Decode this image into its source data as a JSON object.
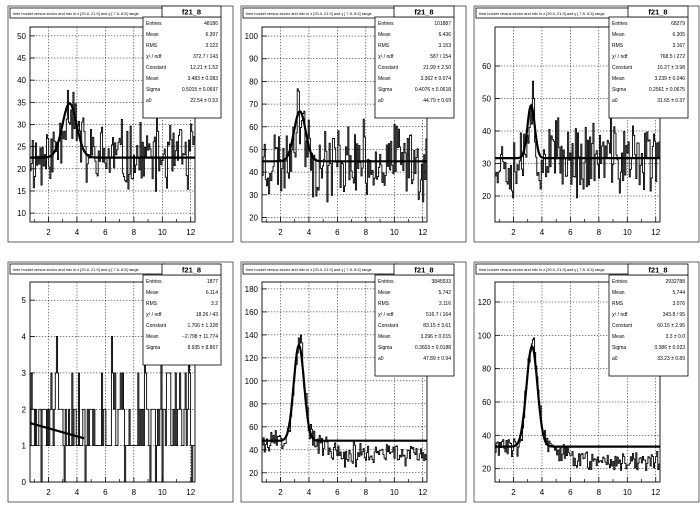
{
  "chart_data": [
    {
      "type": "line",
      "panel_label": "time bucket versus sector and ndc in z [20.0, 21.0] and y [ 7.5, 8.5] range",
      "histogram_name": "f21_8",
      "xlim": [
        0.7,
        12.3
      ],
      "ylim": [
        8,
        52
      ],
      "xticks": [
        2,
        4,
        6,
        8,
        10,
        12
      ],
      "yticks": [
        10,
        15,
        20,
        25,
        30,
        35,
        40,
        45,
        50
      ],
      "grid": true,
      "stats": [
        {
          "label": "Entries",
          "value": "48186"
        },
        {
          "label": "Mean",
          "value": "6.397"
        },
        {
          "label": "RMS",
          "value": "3.122"
        },
        {
          "label": "χ² / ndf",
          "value": "372.7 / 143"
        },
        {
          "label": "Constant",
          "value": "12.21 ± 1.52"
        },
        {
          "label": "Mean",
          "value": "3.483 ± 0.083"
        },
        {
          "label": "Sigma",
          "value": "0.5015 ± 0.0697"
        },
        {
          "label": "a0",
          "value": "22.54 ± 0.53"
        }
      ],
      "fit": {
        "constant": 12.21,
        "mean": 3.483,
        "sigma": 0.5015,
        "a0": 22.54
      },
      "noise": 7,
      "seed": 11
    },
    {
      "type": "line",
      "panel_label": "time bucket versus sector and ndc in z [20.0, 21.0] and y [ 7.5, 8.5] range",
      "histogram_name": "f21_8",
      "xlim": [
        0.7,
        12.3
      ],
      "ylim": [
        18,
        104
      ],
      "xticks": [
        2,
        4,
        6,
        8,
        10,
        12
      ],
      "yticks": [
        20,
        30,
        40,
        50,
        60,
        70,
        80,
        90,
        100
      ],
      "grid": true,
      "stats": [
        {
          "label": "Entries",
          "value": "101887"
        },
        {
          "label": "Mean",
          "value": "6.436"
        },
        {
          "label": "RMS",
          "value": "3.153"
        },
        {
          "label": "χ² / ndf",
          "value": "587 / 154"
        },
        {
          "label": "Constant",
          "value": "21.99 ± 2.50"
        },
        {
          "label": "Mean",
          "value": "3.362 ± 0.074"
        },
        {
          "label": "Sigma",
          "value": "0.4076 ± 0.0618"
        },
        {
          "label": "a0",
          "value": "44.79 ± 0.69"
        }
      ],
      "fit": {
        "constant": 21.99,
        "mean": 3.362,
        "sigma": 0.4076,
        "a0": 44.79
      },
      "noise": 14,
      "seed": 23
    },
    {
      "type": "line",
      "panel_label": "time bucket versus sector and ndc in z [20.0, 21.0] and y [ 7.5, 8.5] range",
      "histogram_name": "f21_8",
      "xlim": [
        0.7,
        12.3
      ],
      "ylim": [
        12,
        72
      ],
      "xticks": [
        2,
        4,
        6,
        8,
        10,
        12
      ],
      "yticks": [
        20,
        30,
        40,
        50,
        60
      ],
      "grid": true,
      "stats": [
        {
          "label": "Entries",
          "value": "68279"
        },
        {
          "label": "Mean",
          "value": "6.305"
        },
        {
          "label": "RMS",
          "value": "3.167"
        },
        {
          "label": "χ² / ndf",
          "value": "768.5 / 272"
        },
        {
          "label": "Constant",
          "value": "16.27 ± 3.98"
        },
        {
          "label": "Mean",
          "value": "3.239 ± 0.046"
        },
        {
          "label": "Sigma",
          "value": "0.2561 ± 0.0675"
        },
        {
          "label": "a0",
          "value": "31.65 ± 0.37"
        }
      ],
      "fit": {
        "constant": 16.27,
        "mean": 3.239,
        "sigma": 0.2561,
        "a0": 31.65
      },
      "noise": 10,
      "seed": 37
    },
    {
      "type": "line",
      "panel_label": "time bucket versus sector and ndc in z [20.0, 21.0] and y [ 7.5, 8.5] range",
      "histogram_name": "f21_8",
      "xlim": [
        0.7,
        12.3
      ],
      "ylim": [
        0,
        5.5
      ],
      "xticks": [
        2,
        4,
        6,
        8,
        10,
        12
      ],
      "yticks": [
        0,
        1,
        2,
        3,
        4,
        5
      ],
      "grid": true,
      "stats": [
        {
          "label": "Entries",
          "value": "1877"
        },
        {
          "label": "Mean",
          "value": "6.114"
        },
        {
          "label": "RMS",
          "value": "3.2"
        },
        {
          "label": "χ² / ndf",
          "value": "18.26 / 43"
        },
        {
          "label": "Constant",
          "value": "1.706 ± 1.328"
        },
        {
          "label": "Mean",
          "value": "−2.798 ± 11.774"
        },
        {
          "label": "Sigma",
          "value": "8.935 ± 8.867"
        }
      ],
      "fit_line": {
        "x": [
          0.7,
          4.5
        ],
        "y": [
          1.62,
          1.2
        ]
      },
      "discrete": true,
      "seed": 51
    },
    {
      "type": "line",
      "panel_label": "time bucket versus sector and ndc in z [20.0, 21.0] and y [ 7.5, 8.5] range",
      "histogram_name": "f21_8",
      "xlim": [
        0.7,
        12.3
      ],
      "ylim": [
        12,
        186
      ],
      "xticks": [
        2,
        4,
        6,
        8,
        10,
        12
      ],
      "yticks": [
        20,
        40,
        60,
        80,
        100,
        120,
        140,
        160,
        180
      ],
      "grid": true,
      "stats": [
        {
          "label": "Entries",
          "value": "3845533"
        },
        {
          "label": "Mean",
          "value": "5.742"
        },
        {
          "label": "RMS",
          "value": "3.116"
        },
        {
          "label": "χ² / ndf",
          "value": "516.7 / 164"
        },
        {
          "label": "Constant",
          "value": "83.15 ± 3.61"
        },
        {
          "label": "Mean",
          "value": "3.296 ± 0.015"
        },
        {
          "label": "Sigma",
          "value": "0.3603 ± 0.0188"
        },
        {
          "label": "a0",
          "value": "47.89 ± 0.94"
        }
      ],
      "fit": {
        "constant": 83.15,
        "mean": 3.296,
        "sigma": 0.3603,
        "a0": 47.89
      },
      "tail": true,
      "noise": 9,
      "seed": 67
    },
    {
      "type": "line",
      "panel_label": "time bucket versus sector and ndc in z [20.0, 21.0] and y [ 7.5, 8.5] range",
      "histogram_name": "f21_8",
      "xlim": [
        0.7,
        12.3
      ],
      "ylim": [
        12,
        132
      ],
      "xticks": [
        2,
        4,
        6,
        8,
        10,
        12
      ],
      "yticks": [
        20,
        40,
        60,
        80,
        100,
        120
      ],
      "grid": true,
      "stats": [
        {
          "label": "Entries",
          "value": "2932788"
        },
        {
          "label": "Mean",
          "value": "5.744"
        },
        {
          "label": "RMS",
          "value": "3.076"
        },
        {
          "label": "χ² / ndf",
          "value": "343.8 / 95"
        },
        {
          "label": "Constant",
          "value": "60.15 ± 2.95"
        },
        {
          "label": "Mean",
          "value": "3.3 ± 0.0"
        },
        {
          "label": "Sigma",
          "value": "0.386 ± 0.023"
        },
        {
          "label": "a0",
          "value": "33.23 ± 0.89"
        }
      ],
      "fit": {
        "constant": 60.15,
        "mean": 3.3,
        "sigma": 0.386,
        "a0": 33.23
      },
      "tail": true,
      "noise": 6,
      "seed": 83
    }
  ]
}
